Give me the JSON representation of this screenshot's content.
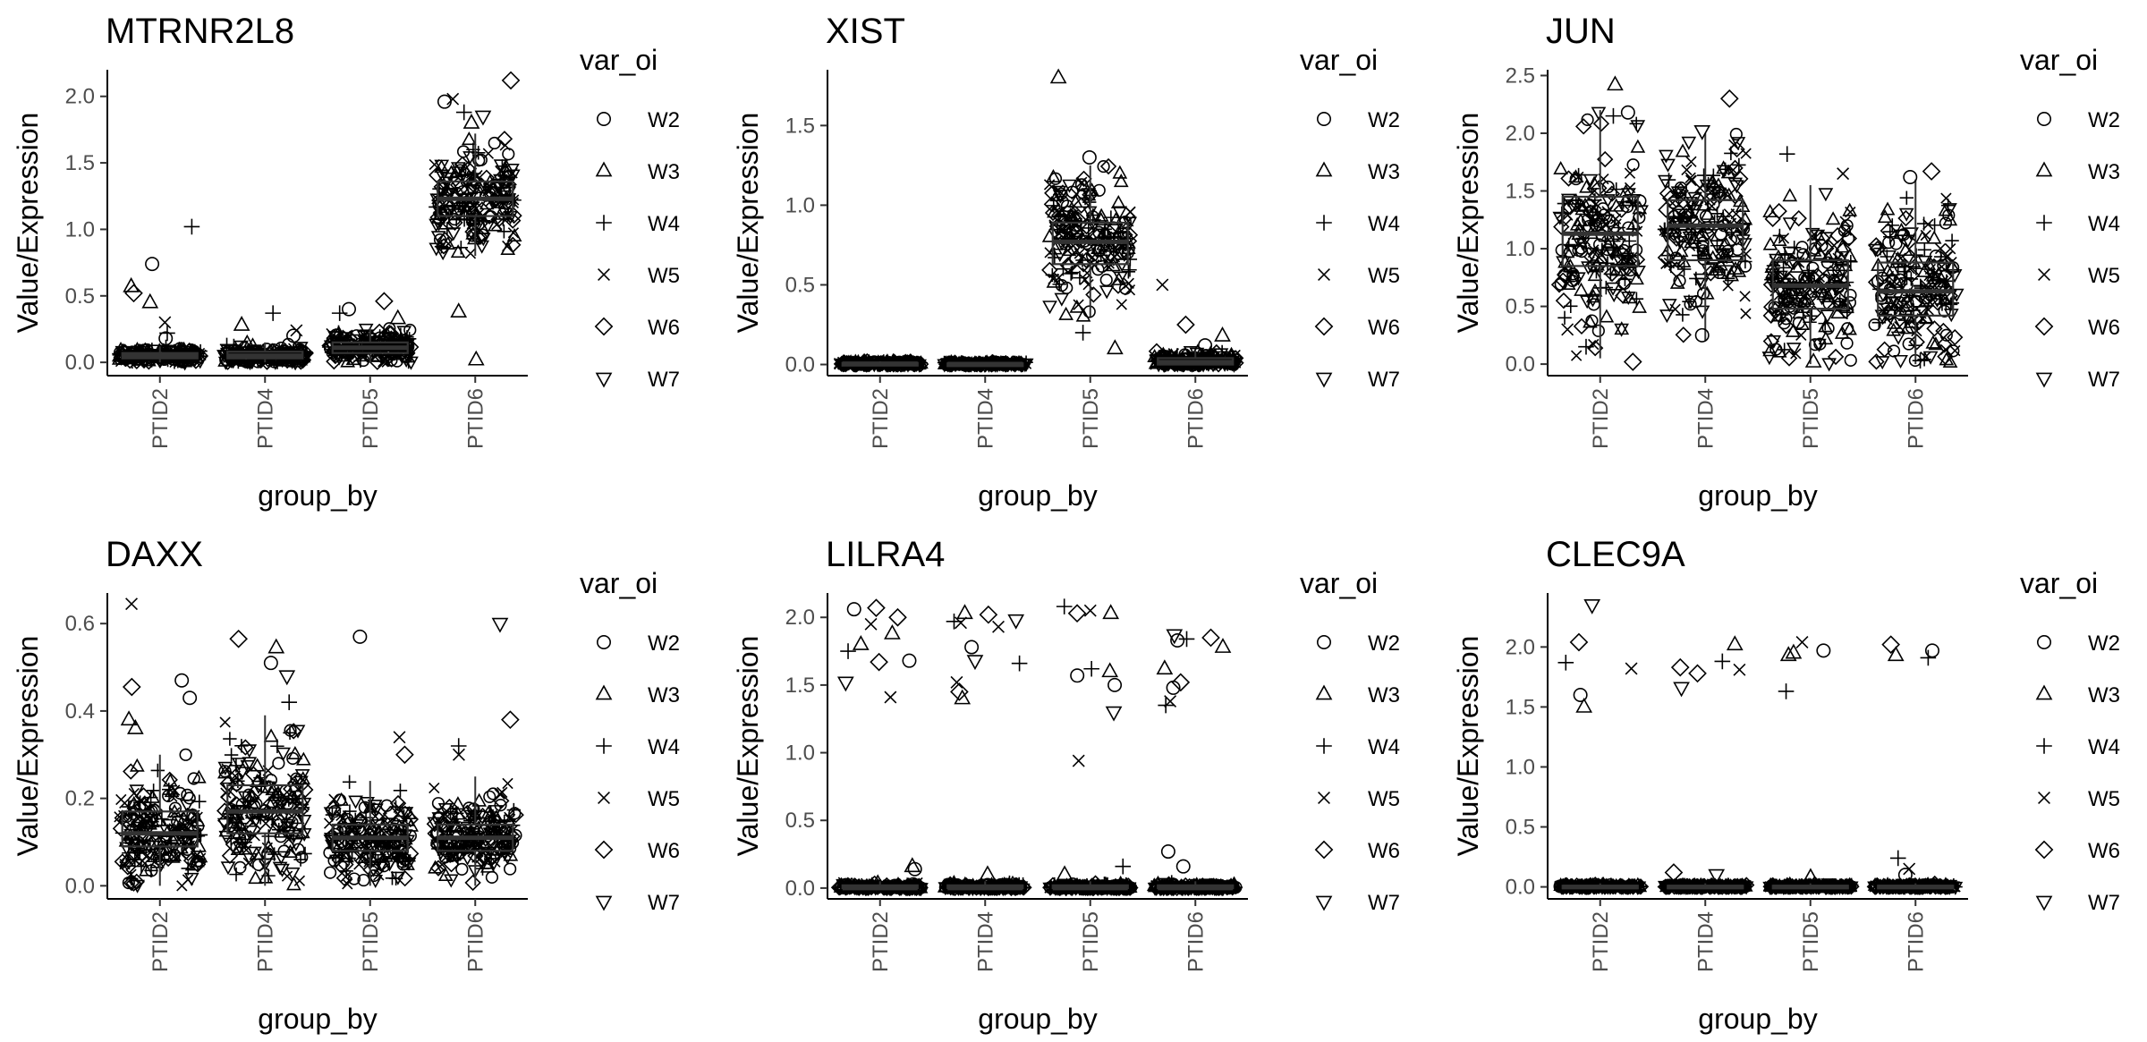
{
  "figure": {
    "background": "#ffffff",
    "point_color": "#000000",
    "box_color": "#333333"
  },
  "legend": {
    "title": "var_oi",
    "entries": [
      {
        "label": "W2",
        "shape": "circle"
      },
      {
        "label": "W3",
        "shape": "triangle"
      },
      {
        "label": "W4",
        "shape": "plus"
      },
      {
        "label": "W5",
        "shape": "cross"
      },
      {
        "label": "W6",
        "shape": "diamond"
      },
      {
        "label": "W7",
        "shape": "triangle-down"
      }
    ]
  },
  "chart_data": [
    {
      "type": "box",
      "title": "MTRNR2L8",
      "xlabel": "group_by",
      "ylabel": "Value/Expression",
      "categories": [
        "PTID2",
        "PTID4",
        "PTID5",
        "PTID6"
      ],
      "ylim": [
        -0.1,
        2.2
      ],
      "yticks": [
        "0.0",
        "0.5",
        "1.0",
        "1.5",
        "2.0"
      ],
      "boxes": [
        {
          "q1": 0.03,
          "median": 0.05,
          "q3": 0.07,
          "whisker_low": 0.0,
          "whisker_high": 0.12
        },
        {
          "q1": 0.03,
          "median": 0.05,
          "q3": 0.08,
          "whisker_low": 0.0,
          "whisker_high": 0.15
        },
        {
          "q1": 0.07,
          "median": 0.11,
          "q3": 0.15,
          "whisker_low": 0.0,
          "whisker_high": 0.26
        },
        {
          "q1": 1.1,
          "median": 1.23,
          "q3": 1.36,
          "whisker_low": 0.8,
          "whisker_high": 1.72
        }
      ],
      "points": [
        {
          "cat": 0,
          "y": 1.02,
          "shape": "plus"
        },
        {
          "cat": 0,
          "y": 0.74,
          "shape": "circle"
        },
        {
          "cat": 0,
          "y": 0.57,
          "shape": "triangle"
        },
        {
          "cat": 0,
          "y": 0.52,
          "shape": "diamond"
        },
        {
          "cat": 0,
          "y": 0.45,
          "shape": "triangle"
        },
        {
          "cat": 0,
          "y": 0.3,
          "shape": "cross"
        },
        {
          "cat": 0,
          "y": 0.22,
          "shape": "plus"
        },
        {
          "cat": 0,
          "y": 0.18,
          "shape": "circle"
        },
        {
          "cat": 1,
          "y": 0.37,
          "shape": "plus"
        },
        {
          "cat": 1,
          "y": 0.28,
          "shape": "triangle"
        },
        {
          "cat": 1,
          "y": 0.24,
          "shape": "cross"
        },
        {
          "cat": 1,
          "y": 0.2,
          "shape": "circle"
        },
        {
          "cat": 2,
          "y": 0.46,
          "shape": "diamond"
        },
        {
          "cat": 2,
          "y": 0.4,
          "shape": "circle"
        },
        {
          "cat": 2,
          "y": 0.37,
          "shape": "plus"
        },
        {
          "cat": 2,
          "y": 0.33,
          "shape": "triangle"
        },
        {
          "cat": 3,
          "y": 2.12,
          "shape": "diamond"
        },
        {
          "cat": 3,
          "y": 1.98,
          "shape": "cross"
        },
        {
          "cat": 3,
          "y": 1.96,
          "shape": "circle"
        },
        {
          "cat": 3,
          "y": 1.88,
          "shape": "plus"
        },
        {
          "cat": 3,
          "y": 1.85,
          "shape": "triangle-down"
        },
        {
          "cat": 3,
          "y": 1.8,
          "shape": "triangle"
        },
        {
          "cat": 3,
          "y": 0.38,
          "shape": "triangle"
        },
        {
          "cat": 3,
          "y": 0.02,
          "shape": "triangle"
        }
      ]
    },
    {
      "type": "box",
      "title": "XIST",
      "xlabel": "group_by",
      "ylabel": "Value/Expression",
      "categories": [
        "PTID2",
        "PTID4",
        "PTID5",
        "PTID6"
      ],
      "ylim": [
        -0.07,
        1.85
      ],
      "yticks": [
        "0.0",
        "0.5",
        "1.0",
        "1.5"
      ],
      "boxes": [
        {
          "q1": 0.0,
          "median": 0.005,
          "q3": 0.01,
          "whisker_low": 0.0,
          "whisker_high": 0.02
        },
        {
          "q1": 0.0,
          "median": 0.003,
          "q3": 0.007,
          "whisker_low": 0.0,
          "whisker_high": 0.015
        },
        {
          "q1": 0.63,
          "median": 0.77,
          "q3": 0.89,
          "whisker_low": 0.3,
          "whisker_high": 1.25
        },
        {
          "q1": 0.0,
          "median": 0.015,
          "q3": 0.04,
          "whisker_low": 0.0,
          "whisker_high": 0.09
        }
      ],
      "points": [
        {
          "cat": 2,
          "y": 1.8,
          "shape": "triangle"
        },
        {
          "cat": 2,
          "y": 1.3,
          "shape": "circle"
        },
        {
          "cat": 2,
          "y": 0.2,
          "shape": "plus"
        },
        {
          "cat": 2,
          "y": 0.1,
          "shape": "triangle"
        },
        {
          "cat": 3,
          "y": 0.5,
          "shape": "cross"
        },
        {
          "cat": 3,
          "y": 0.25,
          "shape": "diamond"
        },
        {
          "cat": 3,
          "y": 0.18,
          "shape": "triangle"
        },
        {
          "cat": 3,
          "y": 0.12,
          "shape": "circle"
        }
      ]
    },
    {
      "type": "box",
      "title": "JUN",
      "xlabel": "group_by",
      "ylabel": "Value/Expression",
      "categories": [
        "PTID2",
        "PTID4",
        "PTID5",
        "PTID6"
      ],
      "ylim": [
        -0.1,
        2.55
      ],
      "yticks": [
        "0.0",
        "0.5",
        "1.0",
        "1.5",
        "2.0",
        "2.5"
      ],
      "boxes": [
        {
          "q1": 0.85,
          "median": 1.13,
          "q3": 1.45,
          "whisker_low": 0.05,
          "whisker_high": 2.2
        },
        {
          "q1": 0.9,
          "median": 1.2,
          "q3": 1.42,
          "whisker_low": 0.2,
          "whisker_high": 2.0
        },
        {
          "q1": 0.48,
          "median": 0.68,
          "q3": 0.9,
          "whisker_low": 0.0,
          "whisker_high": 1.55
        },
        {
          "q1": 0.42,
          "median": 0.63,
          "q3": 0.88,
          "whisker_low": 0.0,
          "whisker_high": 1.6
        }
      ],
      "points": [
        {
          "cat": 0,
          "y": 2.42,
          "shape": "triangle"
        },
        {
          "cat": 0,
          "y": 2.18,
          "shape": "circle"
        },
        {
          "cat": 0,
          "y": 2.15,
          "shape": "plus"
        },
        {
          "cat": 0,
          "y": 0.3,
          "shape": "cross"
        },
        {
          "cat": 0,
          "y": 0.15,
          "shape": "plus"
        },
        {
          "cat": 0,
          "y": 0.02,
          "shape": "diamond"
        },
        {
          "cat": 1,
          "y": 2.3,
          "shape": "diamond"
        },
        {
          "cat": 1,
          "y": 2.02,
          "shape": "triangle-down"
        },
        {
          "cat": 1,
          "y": 0.25,
          "shape": "circle"
        },
        {
          "cat": 2,
          "y": 1.82,
          "shape": "plus"
        },
        {
          "cat": 2,
          "y": 1.65,
          "shape": "cross"
        },
        {
          "cat": 2,
          "y": 0.02,
          "shape": "triangle"
        },
        {
          "cat": 3,
          "y": 1.67,
          "shape": "diamond"
        },
        {
          "cat": 3,
          "y": 1.62,
          "shape": "circle"
        },
        {
          "cat": 3,
          "y": 0.03,
          "shape": "plus"
        }
      ]
    },
    {
      "type": "box",
      "title": "DAXX",
      "xlabel": "group_by",
      "ylabel": "Value/Expression",
      "categories": [
        "PTID2",
        "PTID4",
        "PTID5",
        "PTID6"
      ],
      "ylim": [
        -0.03,
        0.67
      ],
      "yticks": [
        "0.0",
        "0.2",
        "0.4",
        "0.6"
      ],
      "boxes": [
        {
          "q1": 0.09,
          "median": 0.12,
          "q3": 0.17,
          "whisker_low": 0.0,
          "whisker_high": 0.3
        },
        {
          "q1": 0.12,
          "median": 0.17,
          "q3": 0.23,
          "whisker_low": 0.0,
          "whisker_high": 0.39
        },
        {
          "q1": 0.08,
          "median": 0.11,
          "q3": 0.14,
          "whisker_low": 0.0,
          "whisker_high": 0.24
        },
        {
          "q1": 0.08,
          "median": 0.11,
          "q3": 0.14,
          "whisker_low": 0.0,
          "whisker_high": 0.25
        }
      ],
      "points": [
        {
          "cat": 0,
          "y": 0.645,
          "shape": "cross"
        },
        {
          "cat": 0,
          "y": 0.47,
          "shape": "circle"
        },
        {
          "cat": 0,
          "y": 0.455,
          "shape": "diamond"
        },
        {
          "cat": 0,
          "y": 0.43,
          "shape": "circle"
        },
        {
          "cat": 0,
          "y": 0.38,
          "shape": "triangle"
        },
        {
          "cat": 0,
          "y": 0.36,
          "shape": "triangle"
        },
        {
          "cat": 1,
          "y": 0.565,
          "shape": "diamond"
        },
        {
          "cat": 1,
          "y": 0.545,
          "shape": "triangle"
        },
        {
          "cat": 1,
          "y": 0.51,
          "shape": "circle"
        },
        {
          "cat": 1,
          "y": 0.48,
          "shape": "triangle-down"
        },
        {
          "cat": 1,
          "y": 0.42,
          "shape": "plus"
        },
        {
          "cat": 2,
          "y": 0.57,
          "shape": "circle"
        },
        {
          "cat": 2,
          "y": 0.34,
          "shape": "cross"
        },
        {
          "cat": 2,
          "y": 0.3,
          "shape": "diamond"
        },
        {
          "cat": 3,
          "y": 0.6,
          "shape": "triangle-down"
        },
        {
          "cat": 3,
          "y": 0.38,
          "shape": "diamond"
        },
        {
          "cat": 3,
          "y": 0.32,
          "shape": "plus"
        },
        {
          "cat": 3,
          "y": 0.3,
          "shape": "cross"
        }
      ]
    },
    {
      "type": "box",
      "title": "LILRA4",
      "xlabel": "group_by",
      "ylabel": "Value/Expression",
      "categories": [
        "PTID2",
        "PTID4",
        "PTID5",
        "PTID6"
      ],
      "ylim": [
        -0.08,
        2.18
      ],
      "yticks": [
        "0.0",
        "0.5",
        "1.0",
        "1.5",
        "2.0"
      ],
      "boxes": [
        {
          "q1": 0.0,
          "median": 0.0,
          "q3": 0.02,
          "whisker_low": 0.0,
          "whisker_high": 0.05
        },
        {
          "q1": 0.0,
          "median": 0.0,
          "q3": 0.02,
          "whisker_low": 0.0,
          "whisker_high": 0.05
        },
        {
          "q1": 0.0,
          "median": 0.0,
          "q3": 0.02,
          "whisker_low": 0.0,
          "whisker_high": 0.05
        },
        {
          "q1": 0.0,
          "median": 0.0,
          "q3": 0.02,
          "whisker_low": 0.0,
          "whisker_high": 0.05
        }
      ],
      "points": [
        {
          "cat": 0,
          "y": 2.06,
          "shape": "circle"
        },
        {
          "cat": 0,
          "y": 2.07,
          "shape": "diamond"
        },
        {
          "cat": 0,
          "y": 2.0,
          "shape": "diamond"
        },
        {
          "cat": 0,
          "y": 1.95,
          "shape": "cross"
        },
        {
          "cat": 0,
          "y": 1.88,
          "shape": "triangle"
        },
        {
          "cat": 0,
          "y": 1.8,
          "shape": "triangle"
        },
        {
          "cat": 0,
          "y": 1.75,
          "shape": "plus"
        },
        {
          "cat": 0,
          "y": 1.68,
          "shape": "circle"
        },
        {
          "cat": 0,
          "y": 1.67,
          "shape": "diamond"
        },
        {
          "cat": 0,
          "y": 1.52,
          "shape": "triangle-down"
        },
        {
          "cat": 0,
          "y": 1.41,
          "shape": "cross"
        },
        {
          "cat": 0,
          "y": 0.16,
          "shape": "triangle"
        },
        {
          "cat": 0,
          "y": 0.14,
          "shape": "circle"
        },
        {
          "cat": 1,
          "y": 2.03,
          "shape": "triangle"
        },
        {
          "cat": 1,
          "y": 2.02,
          "shape": "diamond"
        },
        {
          "cat": 1,
          "y": 1.97,
          "shape": "plus"
        },
        {
          "cat": 1,
          "y": 1.96,
          "shape": "cross"
        },
        {
          "cat": 1,
          "y": 1.98,
          "shape": "triangle-down"
        },
        {
          "cat": 1,
          "y": 1.93,
          "shape": "cross"
        },
        {
          "cat": 1,
          "y": 1.78,
          "shape": "circle"
        },
        {
          "cat": 1,
          "y": 1.68,
          "shape": "triangle-down"
        },
        {
          "cat": 1,
          "y": 1.66,
          "shape": "plus"
        },
        {
          "cat": 1,
          "y": 1.52,
          "shape": "cross"
        },
        {
          "cat": 1,
          "y": 1.45,
          "shape": "diamond"
        },
        {
          "cat": 1,
          "y": 1.4,
          "shape": "triangle"
        },
        {
          "cat": 1,
          "y": 0.1,
          "shape": "triangle"
        },
        {
          "cat": 2,
          "y": 2.03,
          "shape": "triangle"
        },
        {
          "cat": 2,
          "y": 2.08,
          "shape": "plus"
        },
        {
          "cat": 2,
          "y": 2.05,
          "shape": "cross"
        },
        {
          "cat": 2,
          "y": 2.03,
          "shape": "diamond"
        },
        {
          "cat": 2,
          "y": 1.62,
          "shape": "plus"
        },
        {
          "cat": 2,
          "y": 1.6,
          "shape": "triangle"
        },
        {
          "cat": 2,
          "y": 1.57,
          "shape": "circle"
        },
        {
          "cat": 2,
          "y": 1.5,
          "shape": "circle"
        },
        {
          "cat": 2,
          "y": 1.3,
          "shape": "triangle-down"
        },
        {
          "cat": 2,
          "y": 0.94,
          "shape": "cross"
        },
        {
          "cat": 2,
          "y": 0.16,
          "shape": "plus"
        },
        {
          "cat": 2,
          "y": 0.1,
          "shape": "triangle"
        },
        {
          "cat": 3,
          "y": 1.87,
          "shape": "triangle-down"
        },
        {
          "cat": 3,
          "y": 1.84,
          "shape": "plus"
        },
        {
          "cat": 3,
          "y": 1.83,
          "shape": "circle"
        },
        {
          "cat": 3,
          "y": 1.85,
          "shape": "diamond"
        },
        {
          "cat": 3,
          "y": 1.78,
          "shape": "triangle"
        },
        {
          "cat": 3,
          "y": 1.62,
          "shape": "triangle"
        },
        {
          "cat": 3,
          "y": 1.52,
          "shape": "diamond"
        },
        {
          "cat": 3,
          "y": 1.48,
          "shape": "circle"
        },
        {
          "cat": 3,
          "y": 1.38,
          "shape": "cross"
        },
        {
          "cat": 3,
          "y": 1.35,
          "shape": "plus"
        },
        {
          "cat": 3,
          "y": 0.27,
          "shape": "circle"
        },
        {
          "cat": 3,
          "y": 0.16,
          "shape": "circle"
        }
      ]
    },
    {
      "type": "box",
      "title": "CLEC9A",
      "xlabel": "group_by",
      "ylabel": "Value/Expression",
      "categories": [
        "PTID2",
        "PTID4",
        "PTID5",
        "PTID6"
      ],
      "ylim": [
        -0.1,
        2.45
      ],
      "yticks": [
        "0.0",
        "0.5",
        "1.0",
        "1.5",
        "2.0"
      ],
      "boxes": [
        {
          "q1": 0.0,
          "median": 0.0,
          "q3": 0.01,
          "whisker_low": 0.0,
          "whisker_high": 0.03
        },
        {
          "q1": 0.0,
          "median": 0.0,
          "q3": 0.01,
          "whisker_low": 0.0,
          "whisker_high": 0.03
        },
        {
          "q1": 0.0,
          "median": 0.0,
          "q3": 0.01,
          "whisker_low": 0.0,
          "whisker_high": 0.03
        },
        {
          "q1": 0.0,
          "median": 0.0,
          "q3": 0.01,
          "whisker_low": 0.0,
          "whisker_high": 0.03
        }
      ],
      "points": [
        {
          "cat": 0,
          "y": 2.35,
          "shape": "triangle-down"
        },
        {
          "cat": 0,
          "y": 2.04,
          "shape": "diamond"
        },
        {
          "cat": 0,
          "y": 1.87,
          "shape": "plus"
        },
        {
          "cat": 0,
          "y": 1.82,
          "shape": "cross"
        },
        {
          "cat": 0,
          "y": 1.6,
          "shape": "circle"
        },
        {
          "cat": 0,
          "y": 1.5,
          "shape": "triangle"
        },
        {
          "cat": 1,
          "y": 2.02,
          "shape": "triangle"
        },
        {
          "cat": 1,
          "y": 1.88,
          "shape": "plus"
        },
        {
          "cat": 1,
          "y": 1.83,
          "shape": "diamond"
        },
        {
          "cat": 1,
          "y": 1.81,
          "shape": "cross"
        },
        {
          "cat": 1,
          "y": 1.78,
          "shape": "diamond"
        },
        {
          "cat": 1,
          "y": 1.66,
          "shape": "triangle-down"
        },
        {
          "cat": 1,
          "y": 0.12,
          "shape": "diamond"
        },
        {
          "cat": 1,
          "y": 0.1,
          "shape": "triangle-down"
        },
        {
          "cat": 2,
          "y": 2.04,
          "shape": "cross"
        },
        {
          "cat": 2,
          "y": 1.97,
          "shape": "circle"
        },
        {
          "cat": 2,
          "y": 1.95,
          "shape": "triangle"
        },
        {
          "cat": 2,
          "y": 1.93,
          "shape": "triangle"
        },
        {
          "cat": 2,
          "y": 1.63,
          "shape": "plus"
        },
        {
          "cat": 2,
          "y": 0.08,
          "shape": "triangle"
        },
        {
          "cat": 3,
          "y": 2.02,
          "shape": "diamond"
        },
        {
          "cat": 3,
          "y": 1.97,
          "shape": "circle"
        },
        {
          "cat": 3,
          "y": 1.93,
          "shape": "triangle"
        },
        {
          "cat": 3,
          "y": 1.91,
          "shape": "plus"
        },
        {
          "cat": 3,
          "y": 0.24,
          "shape": "plus"
        },
        {
          "cat": 3,
          "y": 0.15,
          "shape": "cross"
        },
        {
          "cat": 3,
          "y": 0.1,
          "shape": "circle"
        }
      ]
    }
  ]
}
